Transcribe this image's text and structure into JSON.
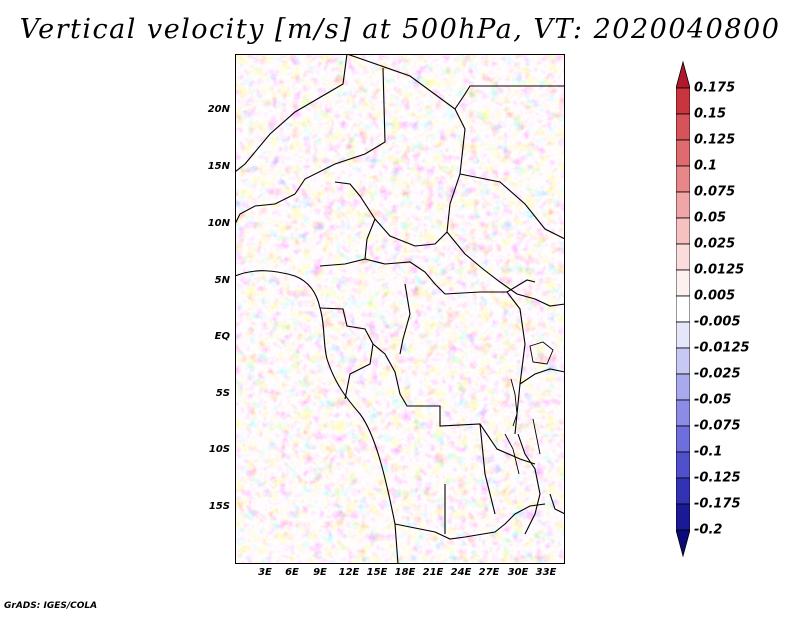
{
  "title": "Vertical velocity [m/s] at 500hPa, VT: 2020040800",
  "credit": "GrADS: IGES/COLA",
  "map": {
    "lat_labels": [
      "20N",
      "15N",
      "10N",
      "5N",
      "EQ",
      "5S",
      "10S",
      "15S"
    ],
    "lon_labels": [
      "3E",
      "6E",
      "9E",
      "12E",
      "15E",
      "18E",
      "21E",
      "24E",
      "27E",
      "30E",
      "33E"
    ],
    "lat_range": [
      -19.5,
      24.5
    ],
    "lon_range": [
      0,
      35
    ]
  },
  "colorbar": {
    "labels": [
      "0.175",
      "0.15",
      "0.125",
      "0.1",
      "0.075",
      "0.05",
      "0.025",
      "0.0125",
      "0.005",
      "-0.005",
      "-0.0125",
      "-0.025",
      "-0.05",
      "-0.075",
      "-0.1",
      "-0.125",
      "-0.175",
      "-0.2"
    ],
    "colors": [
      "#b2182b",
      "#c8353f",
      "#d6535a",
      "#e06b6f",
      "#e8878a",
      "#f0a5a6",
      "#f6c1c1",
      "#fadcdc",
      "#fdf0f0",
      "#ffffff",
      "#e6e6fa",
      "#c8c8f4",
      "#a9a9ed",
      "#8c8ce6",
      "#6e6edc",
      "#5050cc",
      "#3232b4",
      "#1a1a96",
      "#0a0a78"
    ]
  }
}
